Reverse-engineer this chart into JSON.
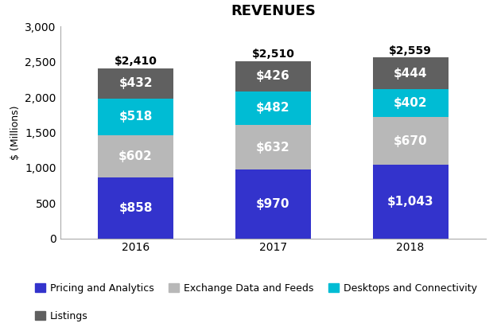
{
  "title": "REVENUES",
  "years": [
    "2016",
    "2017",
    "2018"
  ],
  "categories": [
    "Pricing and Analytics",
    "Exchange Data and Feeds",
    "Desktops and Connectivity",
    "Listings"
  ],
  "values": {
    "Pricing and Analytics": [
      858,
      970,
      1043
    ],
    "Exchange Data and Feeds": [
      602,
      632,
      670
    ],
    "Desktops and Connectivity": [
      518,
      482,
      402
    ],
    "Listings": [
      432,
      426,
      444
    ]
  },
  "totals": [
    "$2,410",
    "$2,510",
    "$2,559"
  ],
  "labels": {
    "Pricing and Analytics": [
      "$858",
      "$970",
      "$1,043"
    ],
    "Exchange Data and Feeds": [
      "$602",
      "$632",
      "$670"
    ],
    "Desktops and Connectivity": [
      "$518",
      "$482",
      "$402"
    ],
    "Listings": [
      "$432",
      "$426",
      "$444"
    ]
  },
  "colors": {
    "Pricing and Analytics": "#3333cc",
    "Exchange Data and Feeds": "#b8b8b8",
    "Desktops and Connectivity": "#00bcd4",
    "Listings": "#606060"
  },
  "ylabel": "$ (Millions)",
  "ylim": [
    0,
    3000
  ],
  "yticks": [
    0,
    500,
    1000,
    1500,
    2000,
    2500,
    3000
  ],
  "bar_width": 0.55,
  "background_color": "#ffffff",
  "title_fontsize": 13,
  "label_fontsize": 9,
  "tick_fontsize": 10,
  "legend_fontsize": 9,
  "total_fontsize": 10,
  "bar_label_fontsize": 11
}
